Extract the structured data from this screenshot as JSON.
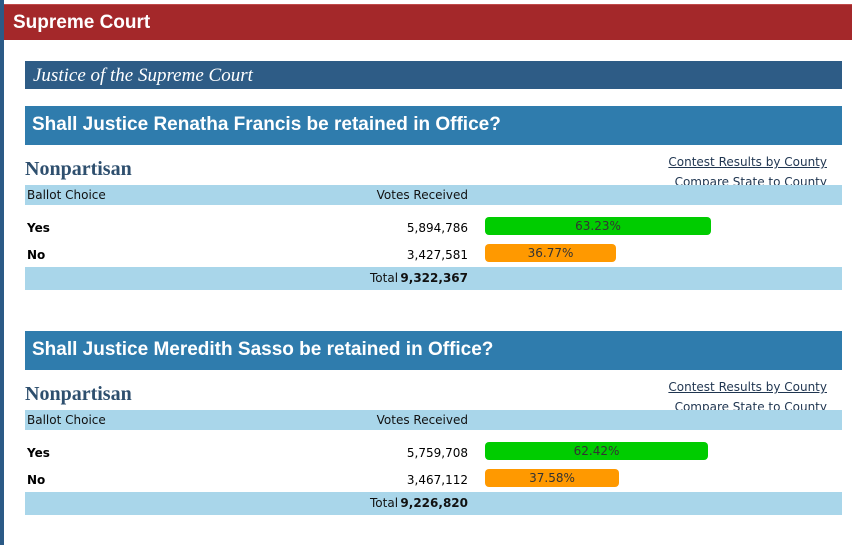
{
  "header": {
    "title": "Supreme Court"
  },
  "office": {
    "title": "Justice of the Supreme Court"
  },
  "colors": {
    "yes_bar": "#00cc00",
    "no_bar": "#ff9900",
    "header_red": "#a4282a",
    "office_blue": "#2e5c86",
    "question_blue": "#2f7cad",
    "table_light": "#a9d6ea"
  },
  "contests": [
    {
      "question": "Shall Justice Renatha Francis be retained in Office?",
      "party": "Nonpartisan",
      "link_county": "Contest Results by County",
      "link_compare": "Compare State to County",
      "col_choice": "Ballot Choice",
      "col_votes": "Votes Received",
      "rows": [
        {
          "choice": "Yes",
          "votes": "5,894,786",
          "percent": "63.23%",
          "percent_value": 63.23
        },
        {
          "choice": "No",
          "votes": "3,427,581",
          "percent": "36.77%",
          "percent_value": 36.77
        }
      ],
      "total_label": "Total",
      "total": "9,322,367"
    },
    {
      "question": "Shall Justice Meredith Sasso be retained in Office?",
      "party": "Nonpartisan",
      "link_county": "Contest Results by County",
      "link_compare": "Compare State to County",
      "col_choice": "Ballot Choice",
      "col_votes": "Votes Received",
      "rows": [
        {
          "choice": "Yes",
          "votes": "5,759,708",
          "percent": "62.42%",
          "percent_value": 62.42
        },
        {
          "choice": "No",
          "votes": "3,467,112",
          "percent": "37.58%",
          "percent_value": 37.58
        }
      ],
      "total_label": "Total",
      "total": "9,226,820"
    }
  ]
}
